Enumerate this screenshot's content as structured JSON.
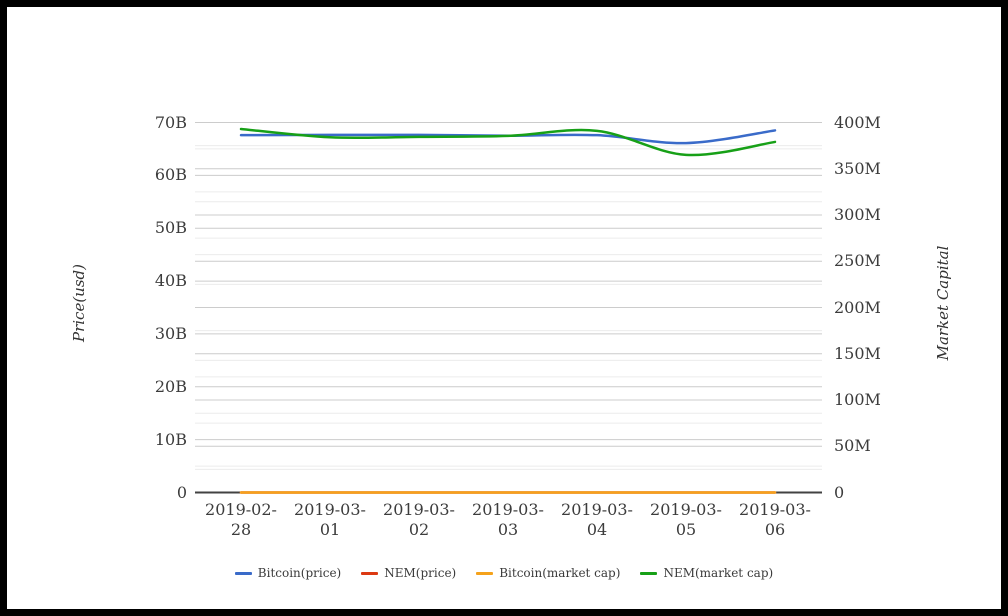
{
  "chart_data": {
    "type": "line",
    "title": "",
    "x_categories": [
      "2019-02-28",
      "2019-03-01",
      "2019-03-02",
      "2019-03-03",
      "2019-03-04",
      "2019-03-05",
      "2019-03-06"
    ],
    "left_axis": {
      "title": "Price(usd)",
      "ticks": [
        "0",
        "10B",
        "20B",
        "30B",
        "40B",
        "50B",
        "60B",
        "70B"
      ],
      "min": 0,
      "max": 70,
      "unit": "B",
      "major_step": 10,
      "minor_step": 5
    },
    "right_axis": {
      "title": "Market Capital",
      "ticks": [
        "0",
        "50M",
        "100M",
        "150M",
        "200M",
        "250M",
        "300M",
        "350M",
        "400M"
      ],
      "min": 0,
      "max": 400,
      "unit": "M",
      "major_step": 50,
      "minor_step": 25
    },
    "series": [
      {
        "name": "Bitcoin(price)",
        "axis": "left",
        "unit": "B",
        "color": "#3a6bc9",
        "values": [
          67.6,
          67.65,
          67.65,
          67.5,
          67.6,
          66.1,
          68.5
        ]
      },
      {
        "name": "NEM(price)",
        "axis": "left",
        "unit": "B",
        "color": "#dc3912",
        "values": [
          0,
          0,
          0,
          0,
          0,
          0,
          0
        ]
      },
      {
        "name": "Bitcoin(market cap)",
        "axis": "right",
        "unit": "M",
        "color": "#f5a21b",
        "values": [
          0,
          0,
          0,
          0,
          0,
          0,
          0
        ]
      },
      {
        "name": "NEM(market cap)",
        "axis": "right",
        "unit": "M",
        "color": "#17a017",
        "values": [
          393,
          384,
          384.5,
          385.5,
          391,
          365,
          379
        ]
      }
    ],
    "legend_position": "bottom",
    "grid": true,
    "colors": {
      "major_gridline": "#cccccc",
      "minor_gridline": "#ececec",
      "zero_baseline": "#424242",
      "tick_text": "#3c3c3c",
      "frame": "#000000",
      "background": "#ffffff"
    }
  }
}
